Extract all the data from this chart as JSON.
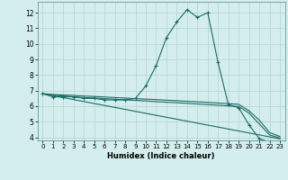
{
  "xlabel": "Humidex (Indice chaleur)",
  "bg_color": "#d4eeed",
  "grid_color": "#b8d8d4",
  "line_color": "#1a6b65",
  "xlim": [
    -0.5,
    23.5
  ],
  "ylim": [
    3.8,
    12.7
  ],
  "yticks": [
    4,
    5,
    6,
    7,
    8,
    9,
    10,
    11,
    12
  ],
  "xticks": [
    0,
    1,
    2,
    3,
    4,
    5,
    6,
    7,
    8,
    9,
    10,
    11,
    12,
    13,
    14,
    15,
    16,
    17,
    18,
    19,
    20,
    21,
    22,
    23
  ],
  "series": [
    {
      "x": [
        0,
        1,
        2,
        3,
        4,
        5,
        6,
        7,
        8,
        9,
        10,
        11,
        12,
        13,
        14,
        15,
        16,
        17,
        18,
        19,
        20,
        21,
        22,
        23
      ],
      "y": [
        6.8,
        6.6,
        6.6,
        6.6,
        6.5,
        6.5,
        6.4,
        6.4,
        6.4,
        6.5,
        7.3,
        8.6,
        10.4,
        11.4,
        12.2,
        11.7,
        12.0,
        8.8,
        6.1,
        5.9,
        4.8,
        3.9,
        3.7,
        3.7
      ],
      "marker": "+"
    },
    {
      "x": [
        0,
        1,
        2,
        3,
        4,
        5,
        6,
        7,
        8,
        9,
        10,
        11,
        12,
        13,
        14,
        15,
        16,
        17,
        18,
        19,
        20,
        21,
        22,
        23
      ],
      "y": [
        6.8,
        6.75,
        6.72,
        6.69,
        6.65,
        6.62,
        6.59,
        6.55,
        6.52,
        6.48,
        6.45,
        6.42,
        6.38,
        6.35,
        6.31,
        6.28,
        6.24,
        6.2,
        6.16,
        6.12,
        5.7,
        5.1,
        4.3,
        4.05
      ],
      "marker": null
    },
    {
      "x": [
        0,
        1,
        2,
        3,
        4,
        5,
        6,
        7,
        8,
        9,
        10,
        11,
        12,
        13,
        14,
        15,
        16,
        17,
        18,
        19,
        20,
        21,
        22,
        23
      ],
      "y": [
        6.8,
        6.7,
        6.65,
        6.6,
        6.55,
        6.52,
        6.48,
        6.44,
        6.4,
        6.37,
        6.33,
        6.29,
        6.25,
        6.22,
        6.18,
        6.14,
        6.1,
        6.06,
        6.02,
        5.98,
        5.55,
        4.85,
        4.15,
        3.95
      ],
      "marker": null
    },
    {
      "x": [
        0,
        23
      ],
      "y": [
        6.8,
        3.9
      ],
      "marker": null
    }
  ]
}
